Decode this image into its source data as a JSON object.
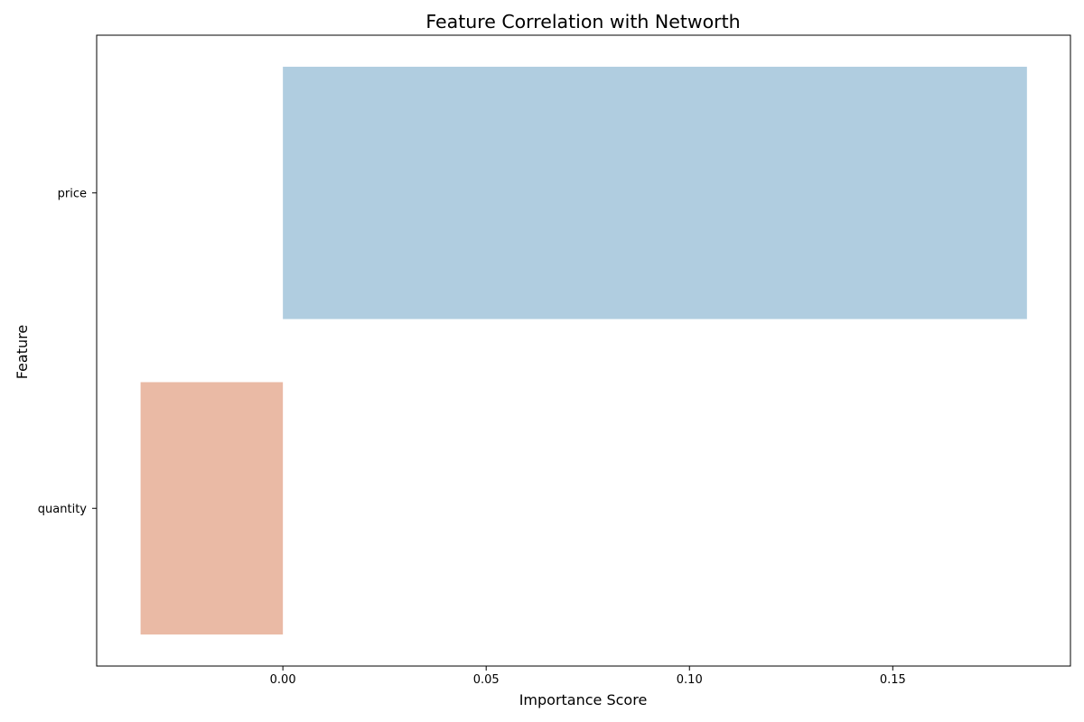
{
  "chart_data": {
    "type": "bar",
    "orientation": "horizontal",
    "title": "Feature Correlation with Networth",
    "xlabel": "Importance Score",
    "ylabel": "Feature",
    "categories": [
      "price",
      "quantity"
    ],
    "values": [
      0.183,
      -0.035
    ],
    "colors": [
      "#b0cde0",
      "#eabaa5"
    ],
    "xlim": [
      -0.0458,
      0.1937
    ],
    "xticks": [
      0.0,
      0.05,
      0.1,
      0.15
    ],
    "xtick_labels": [
      "0.00",
      "0.05",
      "0.10",
      "0.15"
    ],
    "grid": false,
    "legend": "none"
  }
}
